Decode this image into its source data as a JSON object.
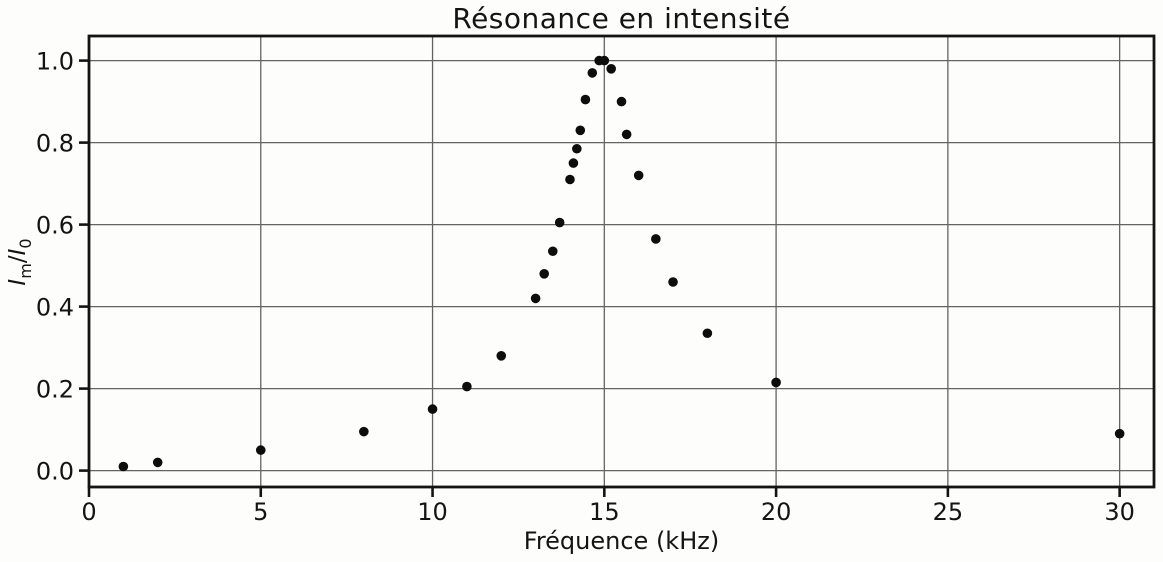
{
  "chart_data": {
    "type": "scatter",
    "title": "Résonance en intensité",
    "xlabel": "Fréquence (kHz)",
    "ylabel_parts": {
      "num_base": "I",
      "num_sub": "m",
      "slash": "/",
      "den_base": "I",
      "den_sub": "0"
    },
    "x": [
      1,
      2,
      5,
      8,
      10,
      11,
      12,
      13,
      13.25,
      13.5,
      13.7,
      14,
      14.1,
      14.2,
      14.3,
      14.45,
      14.65,
      14.85,
      15,
      15.2,
      15.5,
      15.65,
      16,
      16.5,
      17,
      18,
      20,
      30
    ],
    "y": [
      0.01,
      0.02,
      0.05,
      0.095,
      0.15,
      0.205,
      0.28,
      0.42,
      0.48,
      0.535,
      0.605,
      0.71,
      0.75,
      0.785,
      0.83,
      0.905,
      0.97,
      1.0,
      1.0,
      0.98,
      0.9,
      0.82,
      0.72,
      0.565,
      0.46,
      0.335,
      0.215,
      0.09
    ],
    "xlim": [
      0,
      31
    ],
    "ylim": [
      -0.04,
      1.06
    ],
    "xtick_values": [
      0,
      5,
      10,
      15,
      20,
      25,
      30
    ],
    "xtick_labels": [
      "0",
      "5",
      "10",
      "15",
      "20",
      "25",
      "30"
    ],
    "ytick_values": [
      0.0,
      0.2,
      0.4,
      0.6,
      0.8,
      1.0
    ],
    "ytick_labels": [
      "0.0",
      "0.2",
      "0.4",
      "0.6",
      "0.8",
      "1.0"
    ],
    "grid": true,
    "legend": "none",
    "marker": {
      "shape": "circle",
      "radius_px": 4.8,
      "color": "#0d0d0d"
    },
    "colors": {
      "spine": "#141414",
      "grid": "#636363",
      "tick": "#141414",
      "text": "#141414",
      "background": "#fdfdfc"
    }
  }
}
